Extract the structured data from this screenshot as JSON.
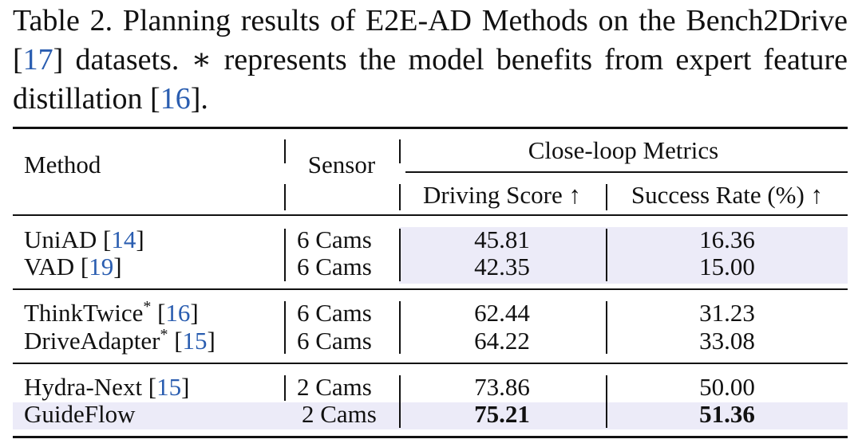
{
  "caption": {
    "part1": "Table 2.   Planning results of E2E-AD Methods on the Bench2Drive [",
    "cite1": "17",
    "part2": "] datasets. ∗ represents the model benefits from expert feature distillation [",
    "cite2": "16",
    "part3": "]."
  },
  "header": {
    "method": "Method",
    "sensor": "Sensor",
    "group": "Close-loop Metrics",
    "ds": "Driving Score ↑",
    "sr": "Success Rate (%) ↑"
  },
  "rows": [
    {
      "name": "UniAD [",
      "star": "",
      "cite": "14",
      "close": "]",
      "sensor": "6 Cams",
      "ds": "45.81",
      "sr": "16.36"
    },
    {
      "name": "VAD [",
      "star": "",
      "cite": "19",
      "close": "]",
      "sensor": "6 Cams",
      "ds": "42.35",
      "sr": "15.00"
    },
    {
      "name": "ThinkTwice",
      "star": "*",
      "cite": "16",
      "close": "]",
      "sensor": "6 Cams",
      "ds": "62.44",
      "sr": "31.23"
    },
    {
      "name": "DriveAdapter",
      "star": "*",
      "cite": "15",
      "close": "]",
      "sensor": "6 Cams",
      "ds": "64.22",
      "sr": "33.08"
    },
    {
      "name": "Hydra-Next [",
      "star": "",
      "cite": "15",
      "close": "]",
      "sensor": "2 Cams",
      "ds": "73.86",
      "sr": "50.00"
    },
    {
      "name": "GuideFlow",
      "star": "",
      "cite": "",
      "close": "",
      "sensor": "2 Cams",
      "ds": "75.21",
      "sr": "51.36"
    }
  ],
  "colors": {
    "shade": "#ecebf8",
    "cite": "#2a5db0"
  }
}
